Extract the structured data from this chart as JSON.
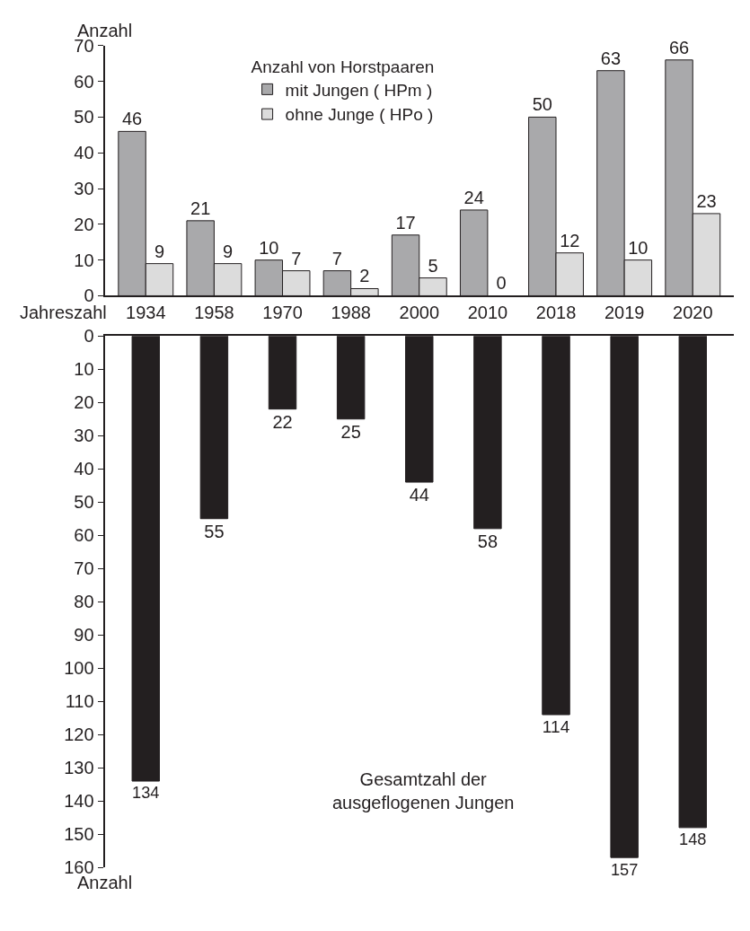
{
  "chart_data": [
    {
      "type": "bar",
      "categories": [
        "1934",
        "1958",
        "1970",
        "1988",
        "2000",
        "2010",
        "2018",
        "2019",
        "2020"
      ],
      "xlabel": "Jahreszahl",
      "ylabel": "Anzahl",
      "legend_title": "Anzahl von Horstpaaren",
      "legend": "top",
      "data_labels": true,
      "ylim": [
        0,
        70
      ],
      "yticks": [
        0,
        10,
        20,
        30,
        40,
        50,
        60,
        70
      ],
      "series": [
        {
          "name": "mit Jungen ( HPm )",
          "color": "#a9a9ab",
          "values": [
            46,
            21,
            10,
            7,
            17,
            24,
            50,
            63,
            66
          ]
        },
        {
          "name": "ohne Junge ( HPo )",
          "color": "#dcdcdc",
          "values": [
            9,
            9,
            7,
            2,
            5,
            0,
            12,
            10,
            23
          ]
        }
      ]
    },
    {
      "type": "bar",
      "categories": [
        "1934",
        "1958",
        "1970",
        "1988",
        "2000",
        "2010",
        "2018",
        "2019",
        "2020"
      ],
      "ylabel": "Anzahl",
      "tick_labels": "y",
      "data_labels": true,
      "ylim": [
        160,
        0
      ],
      "yticks": [
        0,
        10,
        20,
        30,
        40,
        50,
        60,
        70,
        80,
        90,
        100,
        110,
        120,
        130,
        140,
        150,
        160
      ],
      "annotations": [
        "Gesamtzahl der ausgeflogenen Jungen"
      ],
      "series": [
        {
          "color": "#231f20",
          "values": [
            134,
            55,
            22,
            25,
            44,
            58,
            114,
            157,
            148
          ]
        }
      ]
    }
  ]
}
